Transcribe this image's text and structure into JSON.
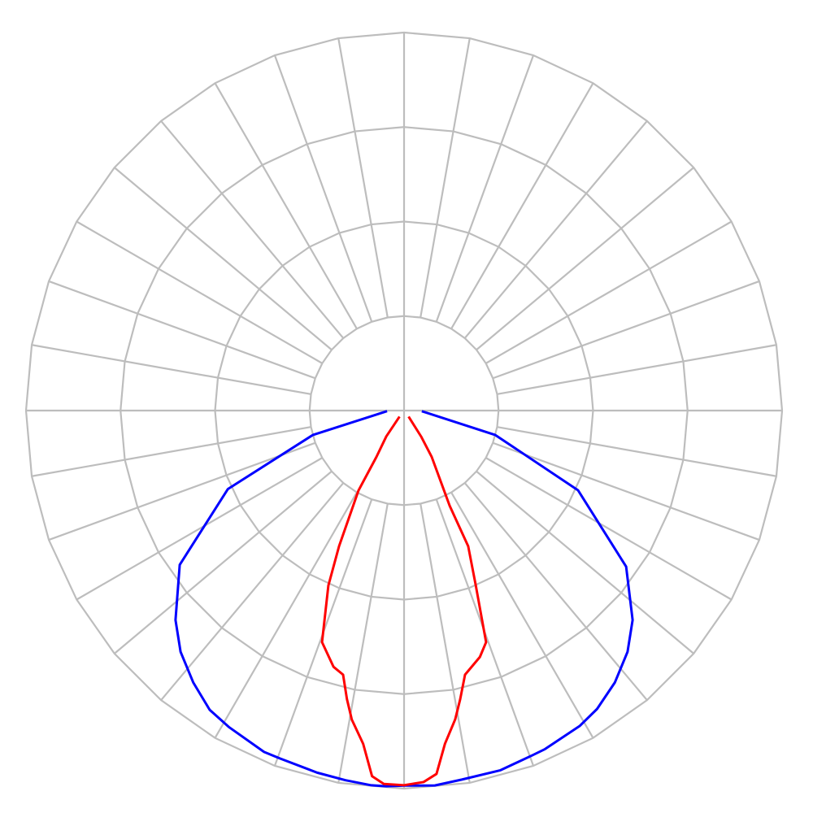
{
  "chart_data": {
    "type": "polar",
    "title": "",
    "angle_zero": "down",
    "angle_step_deg": 10,
    "radial_max": 1,
    "radial_rings": [
      0.25,
      0.5,
      0.75,
      1
    ],
    "grid": true,
    "grid_color": "#bdbdbd",
    "series": [
      {
        "color": "#0000ff",
        "points": [
          [
            -88,
            0.045
          ],
          [
            -75,
            0.25
          ],
          [
            -66,
            0.51
          ],
          [
            -55.5,
            0.72
          ],
          [
            -47.5,
            0.82
          ],
          [
            -42.8,
            0.87
          ],
          [
            -37.8,
            0.91
          ],
          [
            -33,
            0.944
          ],
          [
            -28.9,
            0.957
          ],
          [
            -22.3,
            0.976
          ],
          [
            -19.6,
            0.977
          ],
          [
            -13.5,
            0.985
          ],
          [
            -9,
            0.99
          ],
          [
            -5,
            0.995
          ],
          [
            -2.7,
            0.995
          ],
          [
            0,
            0.992
          ],
          [
            4.7,
            0.995
          ],
          [
            8.9,
            0.988
          ],
          [
            15,
            0.985
          ],
          [
            20.4,
            0.973
          ],
          [
            22.6,
            0.97
          ],
          [
            29.1,
            0.955
          ],
          [
            32.9,
            0.94
          ],
          [
            37.8,
            0.91
          ],
          [
            42.8,
            0.87
          ],
          [
            47.5,
            0.82
          ],
          [
            54.9,
            0.718
          ],
          [
            65.4,
            0.506
          ],
          [
            75,
            0.25
          ],
          [
            88,
            0.047
          ]
        ]
      },
      {
        "color": "#ff0000",
        "points": [
          [
            -36.9,
            0.02
          ],
          [
            -34.5,
            0.083
          ],
          [
            -30.8,
            0.143
          ],
          [
            -29.7,
            0.243
          ],
          [
            -25.6,
            0.398
          ],
          [
            -23.4,
            0.504
          ],
          [
            -19.5,
            0.65
          ],
          [
            -15.4,
            0.703
          ],
          [
            -13,
            0.717
          ],
          [
            -11.2,
            0.778
          ],
          [
            -9.6,
            0.829
          ],
          [
            -7,
            0.888
          ],
          [
            -5,
            0.971
          ],
          [
            -3.1,
            0.989
          ],
          [
            0,
            0.991
          ],
          [
            3,
            0.984
          ],
          [
            5.1,
            0.965
          ],
          [
            7,
            0.888
          ],
          [
            9.4,
            0.828
          ],
          [
            11,
            0.778
          ],
          [
            13,
            0.717
          ],
          [
            17.1,
            0.682
          ],
          [
            19.5,
            0.65
          ],
          [
            22.3,
            0.5
          ],
          [
            25.3,
            0.397
          ],
          [
            25.6,
            0.279
          ],
          [
            30.8,
            0.143
          ],
          [
            33.3,
            0.082
          ],
          [
            36.9,
            0.02
          ]
        ]
      }
    ]
  }
}
